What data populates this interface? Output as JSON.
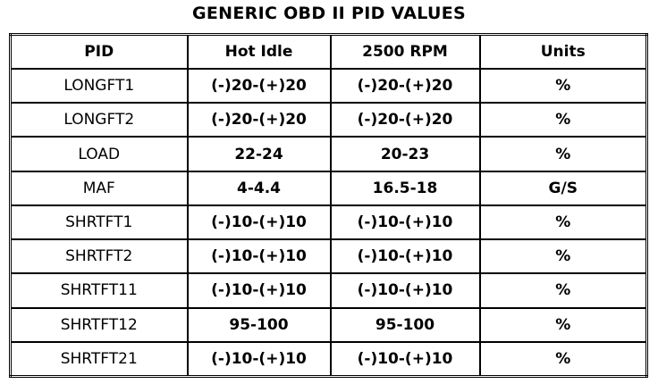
{
  "title": "GENERIC OBD II PID VALUES",
  "table": {
    "header": [
      "PID",
      "Hot Idle",
      "2500 RPM",
      "Units"
    ],
    "rows": [
      [
        "LONGFT1",
        "(-)20-(+)20",
        "(-)20-(+)20",
        "%"
      ],
      [
        "LONGFT2",
        "(-)20-(+)20",
        "(-)20-(+)20",
        "%"
      ],
      [
        "LOAD",
        "22-24",
        "20-23",
        "%"
      ],
      [
        "MAF",
        "4-4.4",
        "16.5-18",
        "G/S"
      ],
      [
        "SHRTFT1",
        "(-)10-(+)10",
        "(-)10-(+)10",
        "%"
      ],
      [
        "SHRTFT2",
        "(-)10-(+)10",
        "(-)10-(+)10",
        "%"
      ],
      [
        "SHRTFT11",
        "(-)10-(+)10",
        "(-)10-(+)10",
        "%"
      ],
      [
        "SHRTFT12",
        "95-100",
        "95-100",
        "%"
      ],
      [
        "SHRTFT21",
        "(-)10-(+)10",
        "(-)10-(+)10",
        "%"
      ]
    ]
  }
}
